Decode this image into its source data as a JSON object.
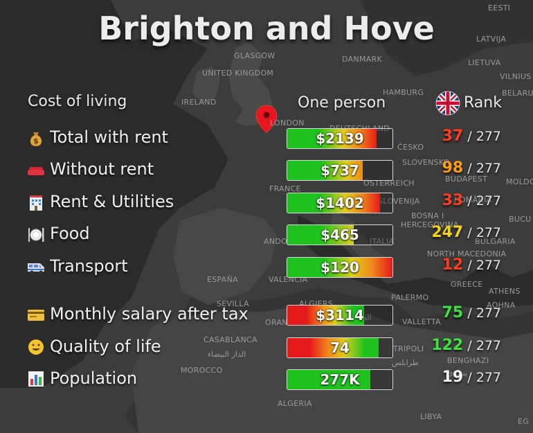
{
  "title": "Brighton and Hove",
  "headers": {
    "cost": "Cost of living",
    "one_person": "One person",
    "rank": "Rank"
  },
  "map_labels": [
    "EESTI",
    "LATVIJA",
    "LIETUVA",
    "VILNIUS",
    "BELARUS",
    "GLASGOW",
    "UNITED KINGDOM",
    "DANMARK",
    "IRELAND",
    "HAMBURG",
    "LONDON",
    "DEUTSCHLAND",
    "ČESKO",
    "SLOVENSKO",
    "ÖSTERREICH",
    "BUDAPEST",
    "MOLDO",
    "ROMÂNIA",
    "FRANCE",
    "SLOVENIJA",
    "BOSNA I",
    "HERCEGOVINA",
    "BUCU",
    "ANDORRA",
    "ITALIA",
    "BULGARIA",
    "NORTH MACEDONIA",
    "ESPAÑA",
    "VALENCIA",
    "GREECE",
    "ATHENS",
    "AOHNA",
    "SEVILLA",
    "ALGIERS",
    "الجزائر",
    "ORAN",
    "VALLETTA",
    "PALERMO",
    "CASABLANCA",
    "الدار البيضاء",
    "TRIPOLI",
    "طرابلس",
    "BENGHAZI",
    "بنغازي",
    "MOROCCO",
    "ALGERIA",
    "LIBYA",
    "EG"
  ],
  "rows": [
    {
      "label": "Total with rent",
      "icon": "money-bag-icon",
      "value": "$2139",
      "fill": 0.85,
      "gradient": "red-end",
      "rank": "37",
      "rank_color": "#ff3b1f",
      "total": "277"
    },
    {
      "label": "Without rent",
      "icon": "sofa-icon",
      "value": "$737",
      "fill": 0.72,
      "gradient": "orange-end",
      "rank": "98",
      "rank_color": "#ff9d12",
      "total": "277"
    },
    {
      "label": "Rent & Utilities",
      "icon": "building-icon",
      "value": "$1402",
      "fill": 0.88,
      "gradient": "red-end",
      "rank": "33",
      "rank_color": "#ff3b1f",
      "total": "277"
    },
    {
      "label": "Food",
      "icon": "fork-knife-plate-icon",
      "value": "$465",
      "fill": 0.63,
      "gradient": "yellow-end",
      "rank": "247",
      "rank_color": "#f0d21a",
      "total": "277"
    },
    {
      "label": "Transport",
      "icon": "minibus-icon",
      "value": "$120",
      "fill": 1.0,
      "gradient": "red-end",
      "rank": "12",
      "rank_color": "#ff3b1f",
      "total": "277"
    },
    {
      "label": "Monthly salary after tax",
      "icon": "credit-card-icon",
      "value": "$3114",
      "fill": 0.73,
      "gradient": "red-to-green",
      "rank": "75",
      "rank_color": "#3fe13f",
      "total": "277"
    },
    {
      "label": "Quality of life",
      "icon": "smiley-icon",
      "value": "74",
      "fill": 0.87,
      "gradient": "red-to-green",
      "rank": "122",
      "rank_color": "#3fe13f",
      "total": "277"
    },
    {
      "label": "Population",
      "icon": "bar-chart-icon",
      "value": "277K",
      "fill": 0.79,
      "gradient": "green",
      "rank": "19",
      "rank_color": "#f2f2f2",
      "total": "277"
    }
  ],
  "colors": {
    "green": "#1fc21f",
    "yellow": "#e0cd1e",
    "orange": "#f08a1a",
    "red": "#e51a1a",
    "marker": "#e8161e"
  }
}
